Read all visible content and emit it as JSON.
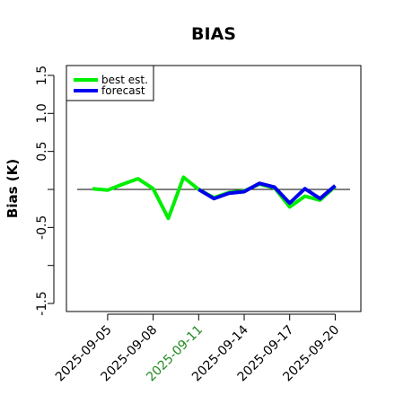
{
  "chart_data": {
    "type": "line",
    "title": "BIAS",
    "xlabel": "",
    "ylabel": "Bias (K)",
    "ylim": [
      -1.6,
      1.6
    ],
    "y_ticks": [
      -1.5,
      -1.0,
      -0.5,
      0,
      0.5,
      1.0,
      1.5
    ],
    "y_tick_labels": [
      "-1.5",
      "",
      "-0.5",
      "",
      "0.5",
      "1.0",
      "1.5"
    ],
    "x_dates": [
      "2025-09-04",
      "2025-09-05",
      "2025-09-06",
      "2025-09-07",
      "2025-09-08",
      "2025-09-09",
      "2025-09-10",
      "2025-09-11",
      "2025-09-12",
      "2025-09-13",
      "2025-09-14",
      "2025-09-15",
      "2025-09-16",
      "2025-09-17",
      "2025-09-18",
      "2025-09-19",
      "2025-09-20"
    ],
    "x_tick_labels": [
      {
        "label": "2025-09-05",
        "color": "#000000"
      },
      {
        "label": "2025-09-08",
        "color": "#000000"
      },
      {
        "label": "2025-09-11",
        "color": "#228b22"
      },
      {
        "label": "2025-09-14",
        "color": "#000000"
      },
      {
        "label": "2025-09-17",
        "color": "#000000"
      },
      {
        "label": "2025-09-20",
        "color": "#000000"
      }
    ],
    "x_tick_dates": [
      "2025-09-05",
      "2025-09-08",
      "2025-09-11",
      "2025-09-14",
      "2025-09-17",
      "2025-09-20"
    ],
    "reference_line": 0,
    "legend_position": "top-left",
    "series": [
      {
        "name": "best est.",
        "color": "#00ee00",
        "x": [
          "2025-09-04",
          "2025-09-05",
          "2025-09-06",
          "2025-09-07",
          "2025-09-08",
          "2025-09-09",
          "2025-09-10",
          "2025-09-11",
          "2025-09-12",
          "2025-09-13",
          "2025-09-14",
          "2025-09-15",
          "2025-09-16",
          "2025-09-17",
          "2025-09-18",
          "2025-09-19",
          "2025-09-20"
        ],
        "values": [
          0.01,
          -0.01,
          0.07,
          0.14,
          0.01,
          -0.38,
          0.16,
          0.0,
          -0.11,
          -0.04,
          -0.02,
          0.07,
          0.02,
          -0.23,
          -0.09,
          -0.14,
          0.04
        ]
      },
      {
        "name": "forecast",
        "color": "#0000ee",
        "x": [
          "2025-09-11",
          "2025-09-12",
          "2025-09-13",
          "2025-09-14",
          "2025-09-15",
          "2025-09-16",
          "2025-09-17",
          "2025-09-18",
          "2025-09-19",
          "2025-09-20"
        ],
        "values": [
          0.0,
          -0.12,
          -0.05,
          -0.03,
          0.08,
          0.03,
          -0.18,
          0.01,
          -0.12,
          0.05
        ]
      }
    ]
  }
}
